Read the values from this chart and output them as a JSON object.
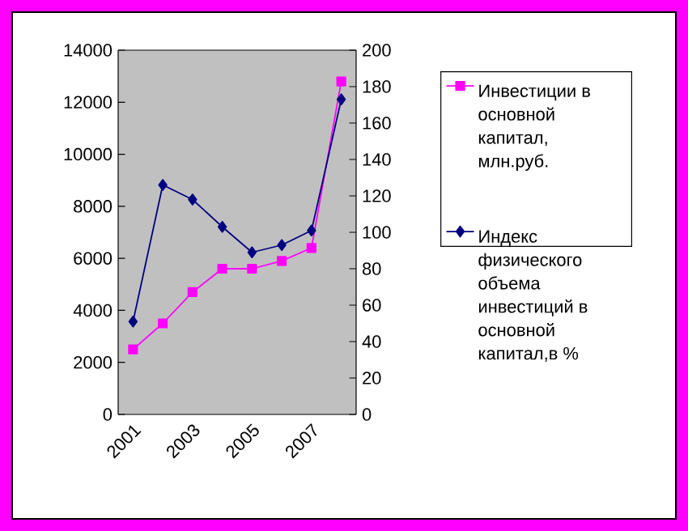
{
  "chart_data": {
    "type": "line",
    "categories": [
      "2001",
      null,
      "2003",
      null,
      "2005",
      null,
      "2007",
      null
    ],
    "series": [
      {
        "name": "Инвестиции в основной капитал, млн.руб.",
        "color": "#ff00ff",
        "marker": "square",
        "values": [
          2500,
          3500,
          4700,
          5600,
          5600,
          5900,
          6400,
          12800
        ]
      },
      {
        "name": "Индекс физического объема инвестиций в основной капитал,в %",
        "color": "#000080",
        "marker": "diamond",
        "axis": "y2",
        "values": [
          51,
          126,
          118,
          103,
          89,
          93,
          101,
          173
        ]
      }
    ],
    "ylim": [
      0,
      14000
    ],
    "yticks": [
      0,
      2000,
      4000,
      6000,
      8000,
      10000,
      12000,
      14000
    ],
    "y2lim": [
      0,
      200
    ],
    "y2ticks": [
      0,
      20,
      40,
      60,
      80,
      100,
      120,
      140,
      160,
      180,
      200
    ],
    "legend": "right",
    "grid": false
  }
}
